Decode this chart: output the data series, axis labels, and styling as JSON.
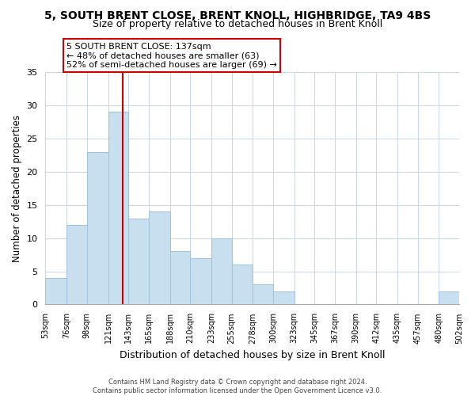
{
  "title": "5, SOUTH BRENT CLOSE, BRENT KNOLL, HIGHBRIDGE, TA9 4BS",
  "subtitle": "Size of property relative to detached houses in Brent Knoll",
  "xlabel": "Distribution of detached houses by size in Brent Knoll",
  "ylabel": "Number of detached properties",
  "bar_edges": [
    53,
    76,
    98,
    121,
    143,
    165,
    188,
    210,
    233,
    255,
    278,
    300,
    323,
    345,
    367,
    390,
    412,
    435,
    457,
    480,
    502
  ],
  "bar_heights": [
    4,
    12,
    23,
    29,
    13,
    14,
    8,
    7,
    10,
    6,
    3,
    2,
    0,
    0,
    0,
    0,
    0,
    0,
    0,
    2
  ],
  "bar_color": "#c8dff0",
  "bar_edge_color": "#a0c0dc",
  "property_line_x": 137,
  "annotation_text_line1": "5 SOUTH BRENT CLOSE: 137sqm",
  "annotation_text_line2": "← 48% of detached houses are smaller (63)",
  "annotation_text_line3": "52% of semi-detached houses are larger (69) →",
  "red_line_color": "#cc0000",
  "annotation_box_edge_color": "#cc0000",
  "ylim": [
    0,
    35
  ],
  "yticks": [
    0,
    5,
    10,
    15,
    20,
    25,
    30,
    35
  ],
  "footer_line1": "Contains HM Land Registry data © Crown copyright and database right 2024.",
  "footer_line2": "Contains public sector information licensed under the Open Government Licence v3.0.",
  "background_color": "#ffffff",
  "grid_color": "#c8d4e8"
}
